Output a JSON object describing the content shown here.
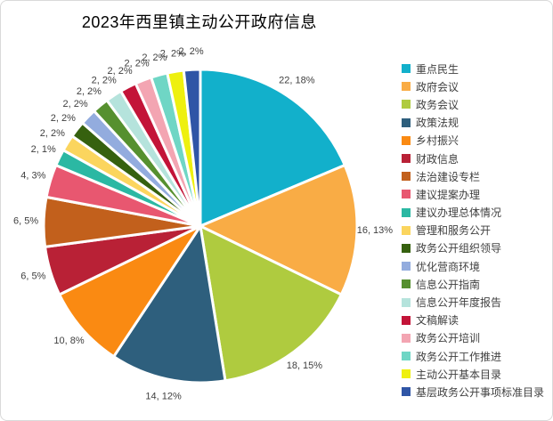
{
  "title": "2023年西里镇主动公开政府信息",
  "chart_data": {
    "type": "pie",
    "title": "2023年西里镇主动公开政府信息",
    "total": 118,
    "start_angle_deg": 0,
    "direction": "clockwise",
    "legend_position": "right",
    "data_label_format": "value, percent",
    "series": [
      {
        "name": "重点民生",
        "value": 22,
        "label": "22, 18%",
        "color": "#12B0CB"
      },
      {
        "name": "政府会议",
        "value": 16,
        "label": "16, 13%",
        "color": "#F9AC45"
      },
      {
        "name": "政务会议",
        "value": 18,
        "label": "18, 15%",
        "color": "#AFCB3F"
      },
      {
        "name": "政策法规",
        "value": 14,
        "label": "14, 12%",
        "color": "#2E5F7D"
      },
      {
        "name": "乡村振兴",
        "value": 10,
        "label": "10, 8%",
        "color": "#FA8A12"
      },
      {
        "name": "财政信息",
        "value": 6,
        "label": "6, 5%",
        "color": "#B92136"
      },
      {
        "name": "法治建设专栏",
        "value": 6,
        "label": "6, 5%",
        "color": "#C2601C"
      },
      {
        "name": "建议提案办理",
        "value": 4,
        "label": "4, 3%",
        "color": "#E85770"
      },
      {
        "name": "建议办理总体情况",
        "value": 2,
        "label": "2, 1%",
        "color": "#2BB8A3"
      },
      {
        "name": "管理和服务公开",
        "value": 2,
        "label": "2, 2%",
        "color": "#FBD55E"
      },
      {
        "name": "政务公开组织领导",
        "value": 2,
        "label": "2, 2%",
        "color": "#36610F"
      },
      {
        "name": "优化营商环境",
        "value": 2,
        "label": "2, 2%",
        "color": "#93ACDE"
      },
      {
        "name": "信息公开指南",
        "value": 2,
        "label": "2, 2%",
        "color": "#56902F"
      },
      {
        "name": "信息公开年度报告",
        "value": 2,
        "label": "2, 2%",
        "color": "#B5E3DC"
      },
      {
        "name": "文稿解读",
        "value": 2,
        "label": "2, 2%",
        "color": "#C31438"
      },
      {
        "name": "政务公开培训",
        "value": 2,
        "label": "2, 2%",
        "color": "#F3A5B2"
      },
      {
        "name": "政务公开工作推进",
        "value": 2,
        "label": "2, 2%",
        "color": "#6FD6C5"
      },
      {
        "name": "主动公开基本目录",
        "value": 2,
        "label": "2, 2%",
        "color": "#EEF00F"
      },
      {
        "name": "基层政务公开事项标准目录",
        "value": 2,
        "label": "2, 2%",
        "color": "#2F55A6"
      }
    ]
  },
  "colors": {
    "background": "#FFFFFF",
    "frame_border": "#D9D9D9",
    "slice_stroke": "#FFFFFF",
    "data_label_text": "#404040",
    "legend_text": "#3F3F3F",
    "title_text": "#000000"
  }
}
